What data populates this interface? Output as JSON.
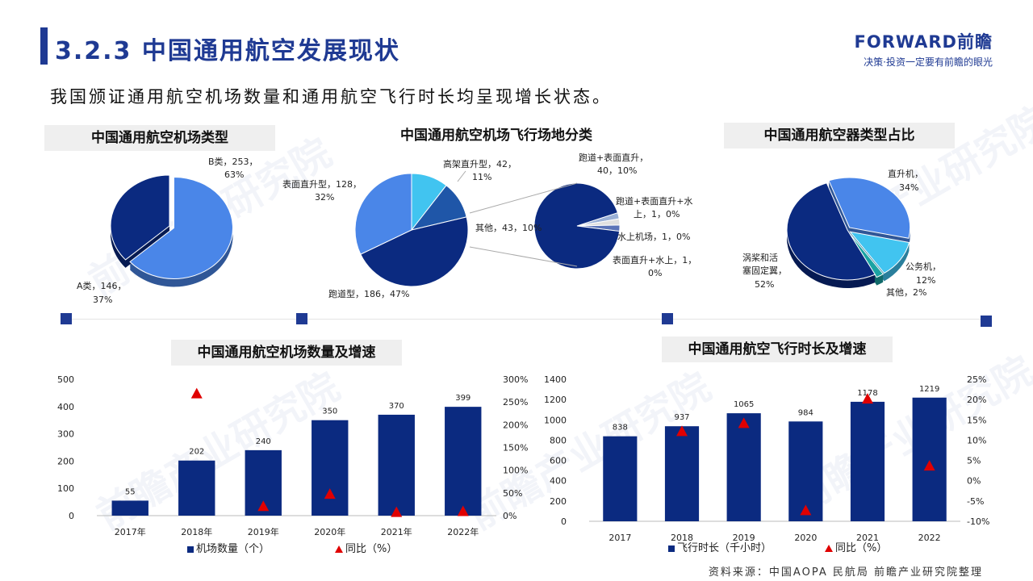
{
  "header": {
    "title": "3.2.3 中国通用航空发展现状",
    "brand_name": "FORWARD前瞻",
    "brand_slogan": "决策·投资一定要有前瞻的眼光",
    "subtitle": "我国颁证通用航空机场数量和通用航空飞行时长均呈现增长状态。"
  },
  "watermark": "前瞻产业研究院",
  "footer": {
    "source": "资料来源：中国AOPA 民航局 前瞻产业研究院整理"
  },
  "colors": {
    "primary": "#1f3a93",
    "bar": "#0b2a80",
    "marker": "#e00000",
    "pie_dark": "#0b2a80",
    "pie_mid": "#4a86e8",
    "pie_light": "#41c4f0",
    "pie_teal": "#1aa3a3"
  },
  "chart_data": [
    {
      "type": "pie",
      "title": "中国通用航空机场类型",
      "slices": [
        {
          "label": "B类",
          "value": 253,
          "pct": "63%"
        },
        {
          "label": "A类",
          "value": 146,
          "pct": "37%"
        }
      ],
      "labels": {
        "b_line1": "B类，253，",
        "b_line2": "63%",
        "a_line1": "A类，146，",
        "a_line2": "37%"
      }
    },
    {
      "type": "pie",
      "title": "中国通用航空机场飞行场地分类",
      "slices": [
        {
          "label": "跑道型",
          "value": 186,
          "pct": "47%"
        },
        {
          "label": "表面直升型",
          "value": 128,
          "pct": "32%"
        },
        {
          "label": "高架直升型",
          "value": 42,
          "pct": "11%"
        },
        {
          "label": "其他",
          "value": 43,
          "pct": "10%"
        }
      ],
      "sub_slices": [
        {
          "label": "跑道+表面直升",
          "value": 40,
          "pct": "10%"
        },
        {
          "label": "跑道+表面直升+水上",
          "value": 1,
          "pct": "0%"
        },
        {
          "label": "水上机场",
          "value": 1,
          "pct": "0%"
        },
        {
          "label": "表面直升+水上",
          "value": 1,
          "pct": "0%"
        }
      ],
      "labels": {
        "runway": "跑道型，186，47%",
        "surface_1": "表面直升型，128，",
        "surface_2": "32%",
        "elevated_1": "高架直升型，42，",
        "elevated_2": "11%",
        "other": "其他，43，10%",
        "sub1_1": "跑道+表面直升，",
        "sub1_2": "40，10%",
        "sub2_1": "跑道+表面直升+水",
        "sub2_2": "上，1，0%",
        "sub3": "水上机场，1，0%",
        "sub4_1": "表面直升+水上，1，",
        "sub4_2": "0%"
      }
    },
    {
      "type": "pie",
      "title": "中国通用航空器类型占比",
      "slices": [
        {
          "label": "涡桨和活塞固定翼",
          "value": 52,
          "pct": "52%"
        },
        {
          "label": "直升机",
          "value": 34,
          "pct": "34%"
        },
        {
          "label": "公务机",
          "value": 12,
          "pct": "12%"
        },
        {
          "label": "其他",
          "value": 2,
          "pct": "2%"
        }
      ],
      "labels": {
        "heli_1": "直升机，",
        "heli_2": "34%",
        "fixed_1": "涡桨和活",
        "fixed_2": "塞固定翼，",
        "fixed_3": "52%",
        "biz_1": "公务机，",
        "biz_2": "12%",
        "other": "其他，2%"
      }
    },
    {
      "type": "bar",
      "title": "中国通用航空机场数量及增速",
      "categories": [
        "2017年",
        "2018年",
        "2019年",
        "2020年",
        "2021年",
        "2022年"
      ],
      "series": [
        {
          "name": "机场数量（个）",
          "type": "bar",
          "values": [
            55,
            202,
            240,
            350,
            370,
            399
          ],
          "value_labels": [
            "55",
            "202",
            "240",
            "350",
            "370",
            "399"
          ]
        },
        {
          "name": "同比（%）",
          "type": "marker",
          "axis": "right",
          "values": [
            null,
            267,
            19,
            46,
            6,
            8
          ]
        }
      ],
      "ylim": [
        0,
        500
      ],
      "yticks": [
        "0",
        "100",
        "200",
        "300",
        "400",
        "500"
      ],
      "y2lim": [
        0,
        300
      ],
      "y2ticks": [
        "0%",
        "50%",
        "100%",
        "150%",
        "200%",
        "250%",
        "300%"
      ],
      "legend_bar": "机场数量（个）",
      "legend_marker": "同比（%）"
    },
    {
      "type": "bar",
      "title": "中国通用航空飞行时长及增速",
      "categories": [
        "2017",
        "2018",
        "2019",
        "2020",
        "2021",
        "2022"
      ],
      "series": [
        {
          "name": "飞行时长（千小时）",
          "type": "bar",
          "values": [
            838,
            937,
            1065,
            984,
            1178,
            1219
          ],
          "value_labels": [
            "838",
            "937",
            "1065",
            "984",
            "1178",
            "1219"
          ]
        },
        {
          "name": "同比（%）",
          "type": "marker",
          "axis": "right",
          "values": [
            null,
            12,
            14,
            -7.5,
            20,
            3.5
          ]
        }
      ],
      "ylim": [
        0,
        1400
      ],
      "yticks": [
        "0",
        "200",
        "400",
        "600",
        "800",
        "1000",
        "1200",
        "1400"
      ],
      "y2lim": [
        -10,
        25
      ],
      "y2ticks": [
        "-10%",
        "-5%",
        "0%",
        "5%",
        "10%",
        "15%",
        "20%",
        "25%"
      ],
      "legend_bar": "飞行时长（千小时）",
      "legend_marker": "同比（%）"
    }
  ]
}
